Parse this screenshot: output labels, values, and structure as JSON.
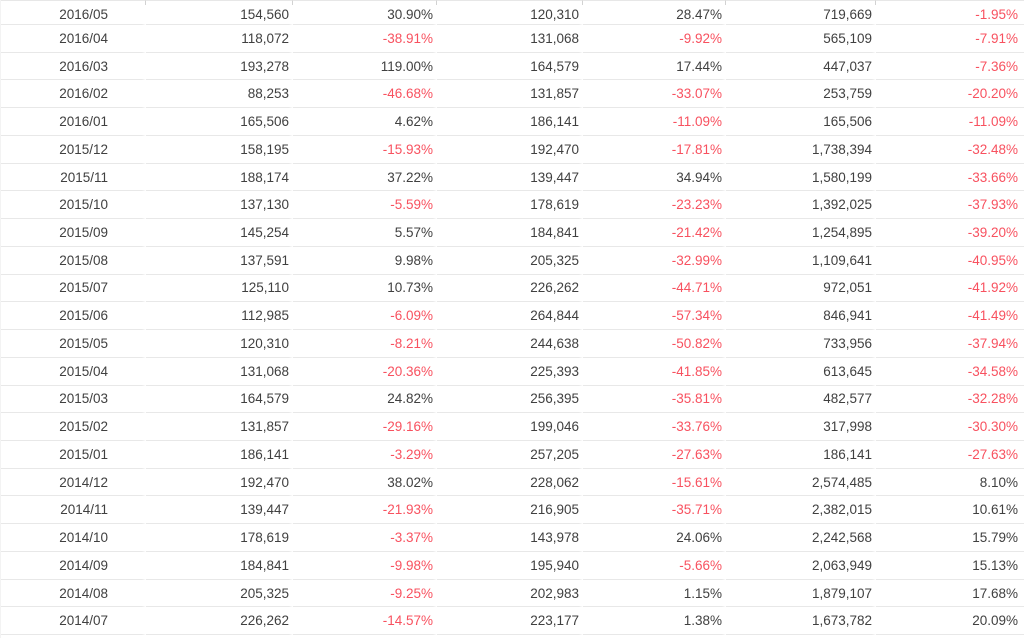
{
  "colors": {
    "text": "#404040",
    "negative": "#f8515f",
    "row_separator": "#e8e8e8",
    "header_border": "#e7e7e7",
    "divider_tick": "#d2d2d2"
  },
  "table": {
    "rows": [
      [
        "2016/05",
        "154,560",
        "30.90%",
        "120,310",
        "28.47%",
        "719,669",
        "-1.95%"
      ],
      [
        "2016/04",
        "118,072",
        "-38.91%",
        "131,068",
        "-9.92%",
        "565,109",
        "-7.91%"
      ],
      [
        "2016/03",
        "193,278",
        "119.00%",
        "164,579",
        "17.44%",
        "447,037",
        "-7.36%"
      ],
      [
        "2016/02",
        "88,253",
        "-46.68%",
        "131,857",
        "-33.07%",
        "253,759",
        "-20.20%"
      ],
      [
        "2016/01",
        "165,506",
        "4.62%",
        "186,141",
        "-11.09%",
        "165,506",
        "-11.09%"
      ],
      [
        "2015/12",
        "158,195",
        "-15.93%",
        "192,470",
        "-17.81%",
        "1,738,394",
        "-32.48%"
      ],
      [
        "2015/11",
        "188,174",
        "37.22%",
        "139,447",
        "34.94%",
        "1,580,199",
        "-33.66%"
      ],
      [
        "2015/10",
        "137,130",
        "-5.59%",
        "178,619",
        "-23.23%",
        "1,392,025",
        "-37.93%"
      ],
      [
        "2015/09",
        "145,254",
        "5.57%",
        "184,841",
        "-21.42%",
        "1,254,895",
        "-39.20%"
      ],
      [
        "2015/08",
        "137,591",
        "9.98%",
        "205,325",
        "-32.99%",
        "1,109,641",
        "-40.95%"
      ],
      [
        "2015/07",
        "125,110",
        "10.73%",
        "226,262",
        "-44.71%",
        "972,051",
        "-41.92%"
      ],
      [
        "2015/06",
        "112,985",
        "-6.09%",
        "264,844",
        "-57.34%",
        "846,941",
        "-41.49%"
      ],
      [
        "2015/05",
        "120,310",
        "-8.21%",
        "244,638",
        "-50.82%",
        "733,956",
        "-37.94%"
      ],
      [
        "2015/04",
        "131,068",
        "-20.36%",
        "225,393",
        "-41.85%",
        "613,645",
        "-34.58%"
      ],
      [
        "2015/03",
        "164,579",
        "24.82%",
        "256,395",
        "-35.81%",
        "482,577",
        "-32.28%"
      ],
      [
        "2015/02",
        "131,857",
        "-29.16%",
        "199,046",
        "-33.76%",
        "317,998",
        "-30.30%"
      ],
      [
        "2015/01",
        "186,141",
        "-3.29%",
        "257,205",
        "-27.63%",
        "186,141",
        "-27.63%"
      ],
      [
        "2014/12",
        "192,470",
        "38.02%",
        "228,062",
        "-15.61%",
        "2,574,485",
        "8.10%"
      ],
      [
        "2014/11",
        "139,447",
        "-21.93%",
        "216,905",
        "-35.71%",
        "2,382,015",
        "10.61%"
      ],
      [
        "2014/10",
        "178,619",
        "-3.37%",
        "143,978",
        "24.06%",
        "2,242,568",
        "15.79%"
      ],
      [
        "2014/09",
        "184,841",
        "-9.98%",
        "195,940",
        "-5.66%",
        "2,063,949",
        "15.13%"
      ],
      [
        "2014/08",
        "205,325",
        "-9.25%",
        "202,983",
        "1.15%",
        "1,879,107",
        "17.68%"
      ],
      [
        "2014/07",
        "226,262",
        "-14.57%",
        "223,177",
        "1.38%",
        "1,673,782",
        "20.09%"
      ]
    ]
  }
}
